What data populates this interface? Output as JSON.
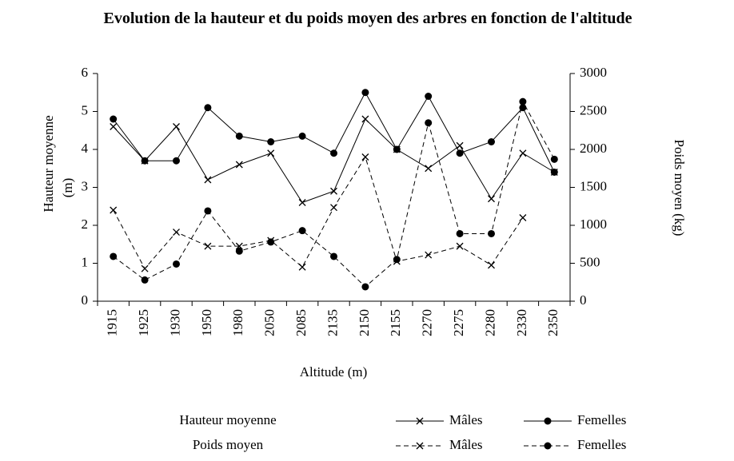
{
  "chart_data": {
    "type": "line",
    "title": "Evolution de la hauteur et du poids moyen des arbres en fonction de l'altitude",
    "xlabel": "Altitude (m)",
    "ylabel": [
      "Hauteur moyenne",
      "(m)"
    ],
    "y2label": "Poids moyen (kg)",
    "categories": [
      "1915",
      "1925",
      "1930",
      "1950",
      "1980",
      "2050",
      "2085",
      "2135",
      "2150",
      "2155",
      "2270",
      "2275",
      "2280",
      "2330",
      "2350"
    ],
    "ylim": [
      0,
      6
    ],
    "yticks": [
      0,
      1,
      2,
      3,
      4,
      5,
      6
    ],
    "y2lim": [
      0,
      3000
    ],
    "y2ticks": [
      0,
      500,
      1000,
      1500,
      2000,
      2500,
      3000
    ],
    "legend_groups": [
      "Hauteur moyenne",
      "Poids moyen"
    ],
    "series": [
      {
        "name": "Mâles",
        "color": "#000000",
        "marker": "x",
        "dashed": false,
        "values": [
          4.6,
          3.7,
          4.6,
          3.2,
          3.6,
          3.9,
          2.6,
          2.9,
          4.8,
          4.0,
          3.5,
          4.1,
          2.7,
          3.9,
          3.4
        ]
      },
      {
        "name": "Femelles",
        "color": "#000000",
        "marker": "circle",
        "dashed": false,
        "values": [
          4.8,
          3.7,
          3.7,
          5.1,
          4.35,
          4.2,
          4.35,
          3.9,
          5.5,
          4.0,
          5.4,
          3.9,
          4.2,
          5.1,
          3.4
        ]
      },
      {
        "name": "Mâles",
        "color": "#000000",
        "marker": "x",
        "dashed": true,
        "axis": "y2",
        "values": [
          1200,
          430,
          910,
          725,
          725,
          800,
          450,
          1235,
          1900,
          525,
          610,
          725,
          475,
          1100,
          null
        ]
      },
      {
        "name": "Femelles",
        "color": "#000000",
        "marker": "circle",
        "dashed": true,
        "axis": "y2",
        "values": [
          590,
          280,
          490,
          1190,
          660,
          780,
          930,
          590,
          190,
          550,
          2350,
          890,
          890,
          2630,
          1870
        ]
      }
    ]
  }
}
